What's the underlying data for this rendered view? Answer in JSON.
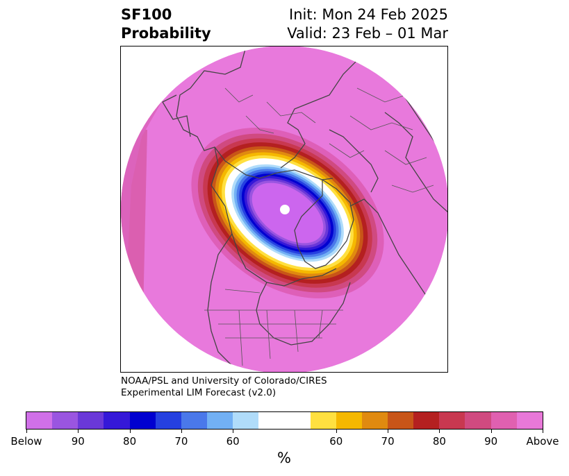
{
  "title": {
    "left_line1": "SF100",
    "left_line2": "Probability",
    "right_line1": "Init: Mon 24 Feb 2025",
    "right_line2": "Valid: 23 Feb – 01 Mar"
  },
  "credit": {
    "line1": "NOAA/PSL and University of Colorado/CIRES",
    "line2": "Experimental LIM Forecast (v2.0)"
  },
  "colorbar": {
    "unit": "%",
    "colors": [
      "#d070e8",
      "#9a55e0",
      "#6a38d8",
      "#3518d8",
      "#0000d0",
      "#2540e0",
      "#4a78ea",
      "#72b0f4",
      "#b0dcfa",
      "#ffffff",
      "#ffe040",
      "#f5b800",
      "#e08a10",
      "#c85518",
      "#b42020",
      "#c83850",
      "#d04a80",
      "#e060b0",
      "#e878d8"
    ],
    "tick_labels": [
      "Below",
      "90",
      "80",
      "70",
      "60",
      "60",
      "70",
      "80",
      "90",
      "Above"
    ]
  },
  "map": {
    "background_color": "#e879dc",
    "center_color": "#cc66ee"
  }
}
